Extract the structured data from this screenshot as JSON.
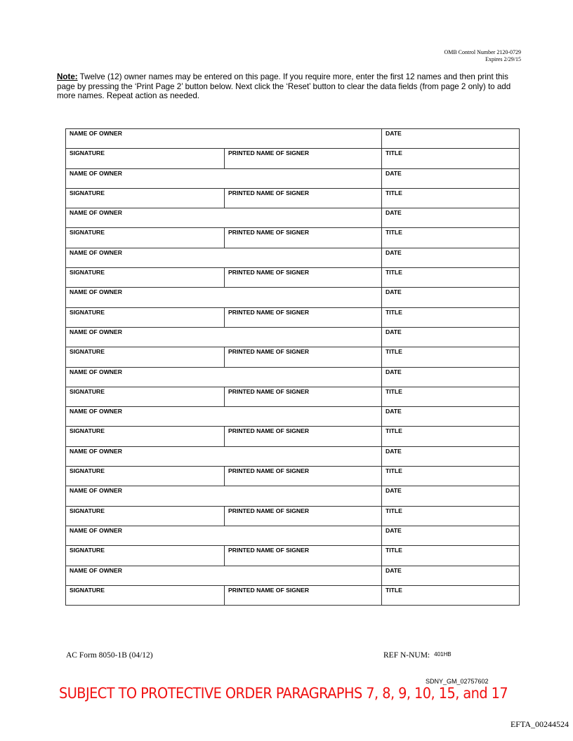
{
  "header": {
    "omb_control": "OMB Control Number 2120-0729",
    "expires": "Expires 2/29/15"
  },
  "note": {
    "label": "Note:",
    "text": " Twelve (12) owner names may be entered on this page.  If you require more, enter the first 12 names and then print this page by pressing the ‘Print Page 2’ button below.  Next click the ‘Reset’ button to clear the data fields (from page 2 only) to add more names.  Repeat action as needed."
  },
  "form": {
    "labels": {
      "name_of_owner": "NAME OF OWNER",
      "date": "DATE",
      "signature": "SIGNATURE",
      "printed_name": "PRINTED NAME OF SIGNER",
      "title": "TITLE"
    },
    "owners": [
      {},
      {},
      {},
      {},
      {},
      {},
      {},
      {},
      {},
      {},
      {},
      {}
    ]
  },
  "footer": {
    "form_id": "AC Form 8050-1B (04/12)",
    "ref_label": "REF N-NUM:",
    "ref_value": "401HB"
  },
  "stamps": {
    "bates": "SDNY_GM_02757602",
    "protective_order": "SUBJECT TO PROTECTIVE ORDER PARAGRAPHS 7, 8, 9, 10, 15, and 17",
    "efta": "EFTA_00244524",
    "protective_color": "#f01010"
  }
}
